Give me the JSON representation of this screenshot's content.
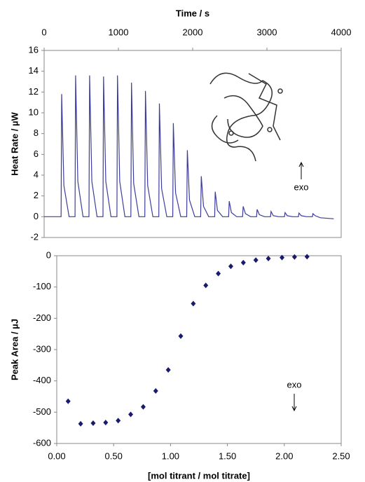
{
  "chart_data": [
    {
      "type": "line",
      "x_label": "Time / s",
      "y_label": "Heat Rate / µW",
      "annotation": "exo",
      "xlim": [
        0,
        4000
      ],
      "xticks": [
        0,
        1000,
        2000,
        3000,
        4000
      ],
      "ylim": [
        -2,
        16
      ],
      "yticks": [
        -2,
        0,
        2,
        4,
        6,
        8,
        10,
        12,
        14,
        16
      ],
      "color": "#3c3c9c",
      "x": [
        0,
        228,
        236,
        266,
        336,
        416,
        424,
        454,
        524,
        604,
        612,
        642,
        712,
        792,
        800,
        830,
        900,
        980,
        988,
        1018,
        1088,
        1168,
        1176,
        1206,
        1276,
        1356,
        1364,
        1394,
        1464,
        1544,
        1552,
        1582,
        1652,
        1732,
        1740,
        1770,
        1840,
        1920,
        1928,
        1958,
        2028,
        2108,
        2116,
        2146,
        2216,
        2296,
        2304,
        2334,
        2404,
        2484,
        2492,
        2522,
        2592,
        2672,
        2680,
        2710,
        2780,
        2860,
        2868,
        2898,
        2968,
        3048,
        3056,
        3086,
        3156,
        3236,
        3244,
        3274,
        3344,
        3424,
        3432,
        3462,
        3532,
        3612,
        3620,
        3650,
        3720,
        3900
      ],
      "values": [
        0,
        0,
        11.8,
        3.0,
        0,
        0,
        13.6,
        3.4,
        0,
        0,
        13.6,
        3.4,
        0,
        0,
        13.5,
        3.4,
        0,
        0,
        13.6,
        3.4,
        0,
        0,
        12.9,
        3.2,
        0,
        0,
        12.1,
        3.0,
        0,
        0,
        10.9,
        2.7,
        0,
        0,
        9.0,
        2.3,
        0,
        0,
        6.4,
        1.6,
        0,
        0,
        3.9,
        1.0,
        0,
        0,
        2.4,
        0.6,
        0,
        0,
        1.5,
        0.4,
        0,
        0,
        1.0,
        0.3,
        0,
        0,
        0.7,
        0.2,
        0,
        0,
        0.5,
        0.1,
        0,
        0,
        0.4,
        0.1,
        0,
        0,
        0.35,
        0.1,
        0,
        0,
        0.3,
        0.1,
        -0.1,
        -0.2
      ]
    },
    {
      "type": "scatter",
      "x_label": "[mol titrant / mol titrate]",
      "y_label": "Peak Area / µJ",
      "annotation": "exo",
      "xlim": [
        0,
        2.5
      ],
      "xticks": [
        {
          "value": 0,
          "label": "0.00"
        },
        {
          "value": 0.5,
          "label": "0.50"
        },
        {
          "value": 1,
          "label": "1.00"
        },
        {
          "value": 1.5,
          "label": "1.50"
        },
        {
          "value": 2,
          "label": "2.00"
        },
        {
          "value": 2.5,
          "label": "2.50"
        }
      ],
      "ylim": [
        -600,
        0
      ],
      "yticks": [
        -600,
        -500,
        -400,
        -300,
        -200,
        -100,
        0
      ],
      "color": "#1a1a6e",
      "x": [
        0.1,
        0.21,
        0.32,
        0.43,
        0.54,
        0.65,
        0.76,
        0.87,
        0.98,
        1.09,
        1.2,
        1.31,
        1.42,
        1.53,
        1.64,
        1.75,
        1.86,
        1.98,
        2.09,
        2.2
      ],
      "values": [
        -465,
        -537,
        -535,
        -533,
        -527,
        -507,
        -483,
        -432,
        -365,
        -257,
        -153,
        -95,
        -57,
        -34,
        -22,
        -14,
        -9,
        -6,
        -4,
        -3
      ]
    }
  ]
}
